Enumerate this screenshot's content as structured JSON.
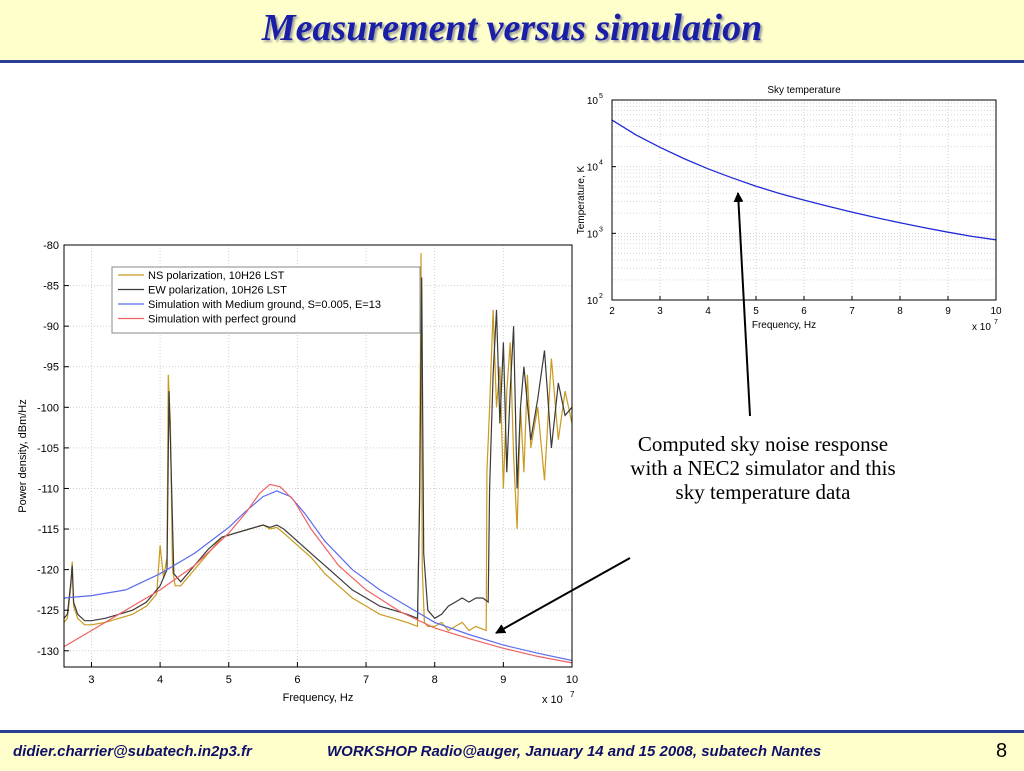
{
  "slide": {
    "title": "Measurement versus simulation",
    "caption": "Computed sky noise response with a NEC2 simulator and this sky temperature data",
    "footer_email": "didier.charrier@subatech.in2p3.fr",
    "footer_event": "WORKSHOP Radio@auger, January 14 and 15 2008, subatech Nantes",
    "page_number": "8"
  },
  "colors": {
    "title": "#1a1fa8",
    "banner_background": "#ffffcc",
    "rule": "#2a3f8f",
    "ns": "#c99a1e",
    "ew": "#3a3a3a",
    "medium_ground": "#5b6cf0",
    "perfect_ground": "#f06262",
    "sky_curve": "#1f2bd6"
  },
  "chart_data": [
    {
      "type": "line",
      "title": "",
      "xlabel": "Frequency, Hz",
      "ylabel": "Power density, dBm/Hz",
      "x_exponent_label": "x 10",
      "x_exponent": "7",
      "xlim": [
        2.6,
        10
      ],
      "ylim": [
        -132,
        -80
      ],
      "x_ticks": [
        3,
        4,
        5,
        6,
        7,
        8,
        9,
        10
      ],
      "y_ticks": [
        -130,
        -125,
        -120,
        -115,
        -110,
        -105,
        -100,
        -95,
        -90,
        -85,
        -80
      ],
      "x_tick_labels": [
        "3",
        "4",
        "5",
        "6",
        "7",
        "8",
        "9",
        "10"
      ],
      "y_tick_labels": [
        "-130",
        "-125",
        "-120",
        "-115",
        "-110",
        "-105",
        "-100",
        "-95",
        "-90",
        "-85",
        "-80"
      ],
      "grid": true,
      "legend_position": "top-left",
      "series": [
        {
          "name": "NS polarization, 10H26 LST",
          "color_key": "ns",
          "x": [
            2.6,
            2.65,
            2.7,
            2.72,
            2.74,
            2.8,
            2.9,
            3.0,
            3.2,
            3.4,
            3.6,
            3.8,
            3.95,
            4.0,
            4.05,
            4.1,
            4.12,
            4.15,
            4.18,
            4.22,
            4.3,
            4.5,
            4.7,
            4.9,
            5.1,
            5.3,
            5.5,
            5.6,
            5.7,
            5.8,
            6.0,
            6.2,
            6.4,
            6.6,
            6.8,
            7.0,
            7.2,
            7.4,
            7.6,
            7.75,
            7.78,
            7.8,
            7.82,
            7.85,
            7.9,
            8.0,
            8.1,
            8.2,
            8.3,
            8.4,
            8.5,
            8.6,
            8.75,
            8.76,
            8.8,
            8.85,
            8.9,
            8.95,
            9.0,
            9.05,
            9.1,
            9.15,
            9.2,
            9.25,
            9.3,
            9.35,
            9.4,
            9.5,
            9.6,
            9.7,
            9.8,
            9.9,
            10.0
          ],
          "y": [
            -126.5,
            -126.0,
            -122.0,
            -119.0,
            -124.5,
            -126.0,
            -126.8,
            -126.8,
            -126.5,
            -126.0,
            -125.5,
            -124.5,
            -123.0,
            -117.0,
            -121.0,
            -118.5,
            -96.0,
            -102.0,
            -120.0,
            -122.0,
            -122.0,
            -120.0,
            -118.0,
            -116.0,
            -115.5,
            -115.0,
            -114.5,
            -115.0,
            -114.8,
            -115.5,
            -117.0,
            -118.5,
            -120.5,
            -122.0,
            -123.5,
            -124.5,
            -125.5,
            -126.0,
            -126.5,
            -127.0,
            -110.0,
            -81.0,
            -120.0,
            -126.5,
            -127.0,
            -127.0,
            -126.5,
            -127.5,
            -127.0,
            -126.5,
            -127.5,
            -127.0,
            -127.5,
            -108.0,
            -100.0,
            -88.0,
            -100.0,
            -95.0,
            -110.0,
            -98.0,
            -92.0,
            -106.0,
            -115.0,
            -100.0,
            -108.0,
            -96.0,
            -105.0,
            -100.0,
            -109.0,
            -94.0,
            -104.0,
            -98.0,
            -102.0
          ]
        },
        {
          "name": "EW polarization, 10H26 LST",
          "color_key": "ew",
          "x": [
            2.6,
            2.65,
            2.7,
            2.72,
            2.74,
            2.8,
            2.9,
            3.0,
            3.2,
            3.4,
            3.6,
            3.8,
            4.0,
            4.1,
            4.13,
            4.15,
            4.2,
            4.3,
            4.5,
            4.7,
            4.9,
            5.1,
            5.3,
            5.5,
            5.6,
            5.7,
            5.8,
            6.0,
            6.2,
            6.4,
            6.6,
            6.8,
            7.0,
            7.2,
            7.4,
            7.6,
            7.75,
            7.78,
            7.81,
            7.84,
            7.9,
            8.0,
            8.1,
            8.2,
            8.3,
            8.4,
            8.5,
            8.6,
            8.7,
            8.78,
            8.8,
            8.85,
            8.9,
            8.95,
            9.0,
            9.05,
            9.1,
            9.15,
            9.2,
            9.25,
            9.3,
            9.4,
            9.5,
            9.6,
            9.7,
            9.8,
            9.9,
            10.0
          ],
          "y": [
            -126.0,
            -125.5,
            -121.5,
            -119.5,
            -124.0,
            -125.5,
            -126.3,
            -126.3,
            -126.0,
            -125.5,
            -125.0,
            -124.0,
            -122.0,
            -120.0,
            -98.0,
            -104.0,
            -120.5,
            -121.5,
            -119.5,
            -117.5,
            -116.0,
            -115.5,
            -115.0,
            -114.5,
            -114.8,
            -114.5,
            -115.0,
            -116.5,
            -118.0,
            -119.5,
            -121.0,
            -122.5,
            -123.5,
            -124.5,
            -125.0,
            -125.5,
            -126.0,
            -112.0,
            -84.0,
            -118.0,
            -125.0,
            -126.0,
            -125.5,
            -124.5,
            -124.0,
            -123.5,
            -124.0,
            -123.5,
            -123.5,
            -124.0,
            -110.0,
            -96.0,
            -88.0,
            -102.0,
            -92.0,
            -108.0,
            -98.0,
            -90.0,
            -110.0,
            -100.0,
            -95.0,
            -104.0,
            -99.0,
            -93.0,
            -105.0,
            -97.0,
            -101.0,
            -100.0
          ]
        },
        {
          "name": "Simulation with Medium ground, S=0.005, E=13",
          "color_key": "medium_ground",
          "x": [
            2.6,
            3.0,
            3.5,
            4.0,
            4.5,
            5.0,
            5.25,
            5.5,
            5.7,
            5.9,
            6.1,
            6.4,
            6.8,
            7.2,
            7.6,
            8.0,
            8.5,
            9.0,
            9.5,
            10.0
          ],
          "y": [
            -123.5,
            -123.2,
            -122.5,
            -120.5,
            -118.0,
            -114.8,
            -112.8,
            -111.0,
            -110.3,
            -111.0,
            -113.0,
            -116.5,
            -120.0,
            -122.5,
            -124.5,
            -126.5,
            -128.0,
            -129.3,
            -130.3,
            -131.2
          ]
        },
        {
          "name": "Simulation with perfect ground",
          "color_key": "perfect_ground",
          "x": [
            2.6,
            3.0,
            3.5,
            4.0,
            4.5,
            5.0,
            5.25,
            5.45,
            5.6,
            5.75,
            5.95,
            6.2,
            6.6,
            7.0,
            7.5,
            8.0,
            8.5,
            9.0,
            9.5,
            10.0
          ],
          "y": [
            -129.5,
            -127.5,
            -125.0,
            -122.5,
            -119.5,
            -115.5,
            -113.0,
            -110.6,
            -109.5,
            -109.8,
            -111.5,
            -115.0,
            -119.5,
            -122.5,
            -125.2,
            -127.2,
            -128.5,
            -129.7,
            -130.7,
            -131.5
          ]
        }
      ]
    },
    {
      "type": "line",
      "title": "Sky temperature",
      "xlabel": "Frequency, Hz",
      "ylabel": "Temperature, K",
      "x_exponent_label": "x 10",
      "x_exponent": "7",
      "xlim": [
        2,
        10
      ],
      "ylim": [
        100,
        100000
      ],
      "y_scale": "log",
      "x_ticks": [
        2,
        3,
        4,
        5,
        6,
        7,
        8,
        9,
        10
      ],
      "x_tick_labels": [
        "2",
        "3",
        "4",
        "5",
        "6",
        "7",
        "8",
        "9",
        "10"
      ],
      "y_ticks": [
        100,
        1000,
        10000,
        100000
      ],
      "y_tick_labels": [
        {
          "base": "10",
          "exp": "2"
        },
        {
          "base": "10",
          "exp": "3"
        },
        {
          "base": "10",
          "exp": "4"
        },
        {
          "base": "10",
          "exp": "5"
        }
      ],
      "grid": true,
      "series": [
        {
          "color_key": "sky_curve",
          "x": [
            2,
            2.5,
            3,
            3.5,
            4,
            4.5,
            5,
            5.5,
            6,
            6.5,
            7,
            7.5,
            8,
            8.5,
            9,
            9.5,
            10
          ],
          "y": [
            50000,
            30000,
            19500,
            13200,
            9300,
            6800,
            5100,
            3950,
            3150,
            2550,
            2080,
            1720,
            1440,
            1220,
            1040,
            900,
            800
          ]
        }
      ]
    }
  ]
}
